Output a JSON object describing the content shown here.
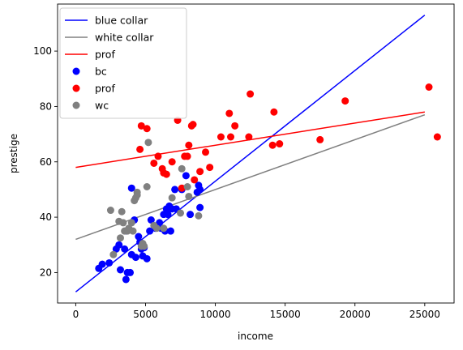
{
  "chart_data": {
    "type": "scatter",
    "xlabel": "income",
    "ylabel": "prestige",
    "xlim": [
      -1300,
      27100
    ],
    "ylim": [
      9,
      117
    ],
    "xticks": [
      0,
      5000,
      10000,
      15000,
      20000,
      25000
    ],
    "yticks": [
      20,
      40,
      60,
      80,
      100
    ],
    "grid": false,
    "legend_position": "top-left",
    "lines": [
      {
        "name": "blue collar",
        "color": "#0000ff",
        "x": [
          0,
          25000
        ],
        "y": [
          13,
          113
        ]
      },
      {
        "name": "white collar",
        "color": "#808080",
        "x": [
          0,
          25000
        ],
        "y": [
          32,
          77
        ]
      },
      {
        "name": "prof",
        "color": "#ff0000",
        "x": [
          0,
          25000
        ],
        "y": [
          58,
          78
        ]
      }
    ],
    "series": [
      {
        "name": "bc",
        "color": "#0000ff",
        "points": [
          [
            1650,
            21.5
          ],
          [
            1900,
            23
          ],
          [
            2400,
            23.5
          ],
          [
            2900,
            28.5
          ],
          [
            3100,
            30
          ],
          [
            3200,
            21
          ],
          [
            3500,
            28.5
          ],
          [
            3600,
            35
          ],
          [
            3600,
            17.5
          ],
          [
            3700,
            20
          ],
          [
            3900,
            20
          ],
          [
            4000,
            26.5
          ],
          [
            4000,
            50.5
          ],
          [
            4200,
            39
          ],
          [
            4300,
            25.5
          ],
          [
            4500,
            33
          ],
          [
            4600,
            31
          ],
          [
            4700,
            28.5
          ],
          [
            4800,
            26
          ],
          [
            4900,
            29
          ],
          [
            5100,
            25
          ],
          [
            5300,
            35
          ],
          [
            5400,
            39
          ],
          [
            5700,
            36
          ],
          [
            6000,
            38
          ],
          [
            6100,
            36
          ],
          [
            6300,
            41
          ],
          [
            6400,
            35
          ],
          [
            6500,
            43
          ],
          [
            6600,
            41
          ],
          [
            6700,
            44
          ],
          [
            6800,
            35
          ],
          [
            6900,
            43
          ],
          [
            7100,
            50
          ],
          [
            7200,
            43
          ],
          [
            7600,
            50
          ],
          [
            7900,
            55
          ],
          [
            8200,
            41
          ],
          [
            8700,
            49
          ],
          [
            8800,
            51.5
          ],
          [
            8900,
            50
          ],
          [
            8900,
            43.5
          ]
        ]
      },
      {
        "name": "prof",
        "color": "#ff0000",
        "points": [
          [
            4600,
            64.5
          ],
          [
            4700,
            73
          ],
          [
            5100,
            72
          ],
          [
            5600,
            59.5
          ],
          [
            5900,
            62
          ],
          [
            6200,
            57.5
          ],
          [
            6300,
            56
          ],
          [
            6500,
            55.5
          ],
          [
            6900,
            60
          ],
          [
            7300,
            75
          ],
          [
            7600,
            50.5
          ],
          [
            7800,
            62
          ],
          [
            8000,
            62
          ],
          [
            8100,
            66
          ],
          [
            8300,
            73
          ],
          [
            8400,
            73.5
          ],
          [
            8500,
            53.5
          ],
          [
            8900,
            56.5
          ],
          [
            9300,
            63.5
          ],
          [
            9600,
            58
          ],
          [
            10400,
            69
          ],
          [
            11000,
            77.5
          ],
          [
            11100,
            69
          ],
          [
            11400,
            73
          ],
          [
            12400,
            69
          ],
          [
            12500,
            84.5
          ],
          [
            14100,
            66
          ],
          [
            14200,
            78
          ],
          [
            14600,
            66.5
          ],
          [
            17500,
            68
          ],
          [
            19300,
            82
          ],
          [
            25300,
            87
          ],
          [
            25900,
            69
          ]
        ]
      },
      {
        "name": "wc",
        "color": "#808080",
        "points": [
          [
            2500,
            42.5
          ],
          [
            2700,
            26.5
          ],
          [
            3100,
            38.5
          ],
          [
            3200,
            32.5
          ],
          [
            3300,
            42
          ],
          [
            3400,
            38
          ],
          [
            3500,
            35
          ],
          [
            3700,
            35
          ],
          [
            3800,
            36
          ],
          [
            4000,
            38
          ],
          [
            4100,
            35
          ],
          [
            4200,
            46
          ],
          [
            4300,
            47
          ],
          [
            4400,
            48
          ],
          [
            4400,
            49
          ],
          [
            4700,
            29.5
          ],
          [
            4800,
            30.5
          ],
          [
            4900,
            29.5
          ],
          [
            5100,
            51
          ],
          [
            5200,
            67
          ],
          [
            5600,
            37
          ],
          [
            5800,
            36
          ],
          [
            6300,
            36
          ],
          [
            6900,
            47
          ],
          [
            7500,
            41.5
          ],
          [
            7600,
            57.5
          ],
          [
            8000,
            51
          ],
          [
            8100,
            47.5
          ],
          [
            8800,
            40.5
          ]
        ]
      }
    ]
  }
}
